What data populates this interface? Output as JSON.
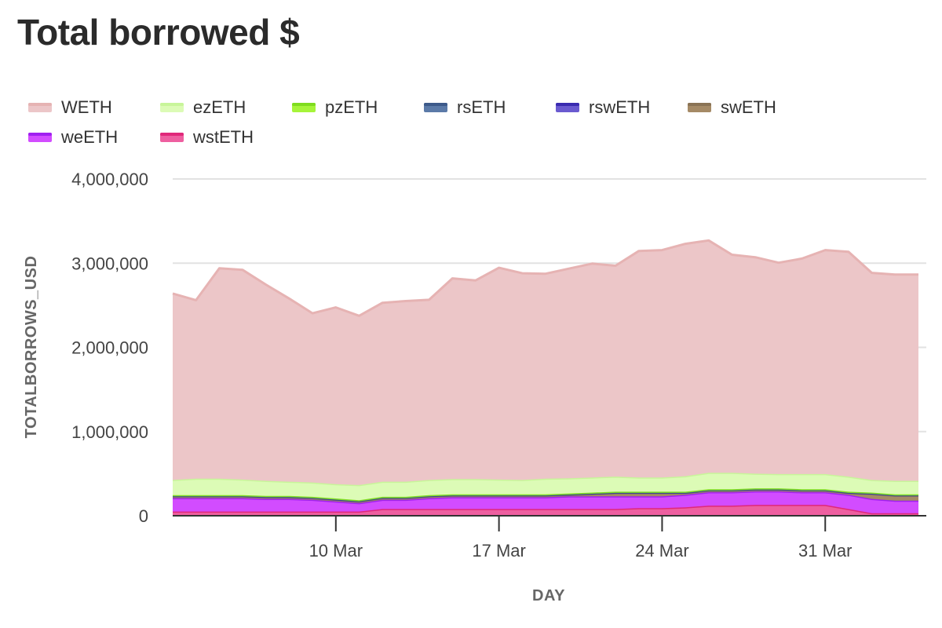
{
  "page": {
    "title": "Total borrowed $"
  },
  "chart_data": {
    "type": "area",
    "stacked": true,
    "title": "Total borrowed $",
    "xlabel": "DAY",
    "ylabel": "TOTALBORROWS_USD",
    "ylim": [
      0,
      4000000
    ],
    "yticks": [
      0,
      1000000,
      2000000,
      3000000,
      4000000
    ],
    "ytick_labels": [
      "0",
      "1,000,000",
      "2,000,000",
      "3,000,000",
      "4,000,000"
    ],
    "x_start": "2024-03-03",
    "xticks": [
      "2024-03-10",
      "2024-03-17",
      "2024-03-24",
      "2024-03-31"
    ],
    "xtick_labels": [
      "10 Mar",
      "17 Mar",
      "24 Mar",
      "31 Mar"
    ],
    "grid": true,
    "legend_position": "top",
    "x": [
      "2024-03-03",
      "2024-03-04",
      "2024-03-05",
      "2024-03-06",
      "2024-03-07",
      "2024-03-08",
      "2024-03-09",
      "2024-03-10",
      "2024-03-11",
      "2024-03-12",
      "2024-03-13",
      "2024-03-14",
      "2024-03-15",
      "2024-03-16",
      "2024-03-17",
      "2024-03-18",
      "2024-03-19",
      "2024-03-20",
      "2024-03-21",
      "2024-03-22",
      "2024-03-23",
      "2024-03-24",
      "2024-03-25",
      "2024-03-26",
      "2024-03-27",
      "2024-03-28",
      "2024-03-29",
      "2024-03-30",
      "2024-03-31",
      "2024-04-01",
      "2024-04-02",
      "2024-04-03",
      "2024-04-04"
    ],
    "series": [
      {
        "name": "wstETH",
        "color": "#e0287a",
        "fill": "#ee5fa0",
        "values": [
          50000,
          50000,
          50000,
          50000,
          50000,
          50000,
          50000,
          50000,
          50000,
          80000,
          80000,
          80000,
          80000,
          80000,
          80000,
          80000,
          80000,
          80000,
          80000,
          80000,
          90000,
          90000,
          100000,
          120000,
          120000,
          130000,
          130000,
          130000,
          130000,
          80000,
          30000,
          30000,
          30000
        ]
      },
      {
        "name": "weETH",
        "color": "#a020f0",
        "fill": "#d24cff",
        "values": [
          160000,
          160000,
          160000,
          160000,
          150000,
          150000,
          140000,
          120000,
          100000,
          110000,
          110000,
          130000,
          140000,
          140000,
          140000,
          140000,
          140000,
          150000,
          150000,
          150000,
          140000,
          140000,
          150000,
          160000,
          160000,
          160000,
          160000,
          150000,
          150000,
          170000,
          170000,
          150000,
          150000
        ]
      },
      {
        "name": "swETH",
        "color": "#8a7355",
        "fill": "#a58a66",
        "values": [
          20000,
          20000,
          20000,
          20000,
          20000,
          20000,
          20000,
          20000,
          20000,
          20000,
          20000,
          20000,
          20000,
          20000,
          20000,
          20000,
          20000,
          20000,
          30000,
          40000,
          40000,
          40000,
          20000,
          20000,
          20000,
          20000,
          20000,
          20000,
          20000,
          20000,
          60000,
          60000,
          60000
        ]
      },
      {
        "name": "rswETH",
        "color": "#3a2bb0",
        "fill": "#6a5ad0",
        "values": [
          5000,
          5000,
          5000,
          5000,
          5000,
          5000,
          5000,
          5000,
          5000,
          5000,
          5000,
          5000,
          5000,
          5000,
          5000,
          5000,
          5000,
          5000,
          5000,
          5000,
          5000,
          5000,
          5000,
          5000,
          5000,
          5000,
          5000,
          5000,
          5000,
          5000,
          5000,
          5000,
          5000
        ]
      },
      {
        "name": "rsETH",
        "color": "#3d5a8a",
        "fill": "#5b7aa8",
        "values": [
          5000,
          5000,
          5000,
          5000,
          5000,
          5000,
          5000,
          5000,
          5000,
          5000,
          5000,
          5000,
          5000,
          5000,
          5000,
          5000,
          5000,
          5000,
          5000,
          5000,
          5000,
          5000,
          5000,
          5000,
          5000,
          5000,
          5000,
          5000,
          5000,
          5000,
          5000,
          5000,
          5000
        ]
      },
      {
        "name": "pzETH",
        "color": "#7fdc1f",
        "fill": "#a6f43a",
        "values": [
          5000,
          5000,
          5000,
          5000,
          5000,
          5000,
          5000,
          5000,
          5000,
          5000,
          5000,
          5000,
          5000,
          5000,
          5000,
          5000,
          5000,
          5000,
          5000,
          5000,
          5000,
          5000,
          5000,
          5000,
          5000,
          5000,
          5000,
          5000,
          5000,
          5000,
          5000,
          5000,
          5000
        ]
      },
      {
        "name": "ezETH",
        "color": "#c8f59a",
        "fill": "#dcfbb6",
        "values": [
          180000,
          195000,
          195000,
          185000,
          180000,
          170000,
          170000,
          170000,
          180000,
          180000,
          180000,
          180000,
          180000,
          180000,
          175000,
          170000,
          185000,
          180000,
          180000,
          180000,
          170000,
          170000,
          185000,
          195000,
          195000,
          175000,
          170000,
          180000,
          180000,
          180000,
          150000,
          160000,
          160000
        ]
      },
      {
        "name": "WETH",
        "color": "#e6b3b3",
        "fill": "#ecc6c8",
        "values": [
          2215000,
          2120000,
          2500000,
          2490000,
          2330000,
          2175000,
          2010000,
          2100000,
          2010000,
          2125000,
          2145000,
          2140000,
          2385000,
          2360000,
          2515000,
          2455000,
          2435000,
          2490000,
          2540000,
          2505000,
          2690000,
          2700000,
          2760000,
          2760000,
          2590000,
          2570000,
          2510000,
          2560000,
          2660000,
          2670000,
          2460000,
          2450000,
          2450000
        ]
      }
    ]
  },
  "legend": {
    "items": [
      {
        "name": "WETH",
        "color": "#e6b3b3",
        "fill": "#ecc6c8"
      },
      {
        "name": "ezETH",
        "color": "#c8f59a",
        "fill": "#dcfbb6"
      },
      {
        "name": "pzETH",
        "color": "#7fdc1f",
        "fill": "#a6f43a"
      },
      {
        "name": "rsETH",
        "color": "#3d5a8a",
        "fill": "#5b7aa8"
      },
      {
        "name": "rswETH",
        "color": "#3a2bb0",
        "fill": "#6a5ad0"
      },
      {
        "name": "swETH",
        "color": "#8a7355",
        "fill": "#a58a66"
      },
      {
        "name": "weETH",
        "color": "#a020f0",
        "fill": "#d24cff"
      },
      {
        "name": "wstETH",
        "color": "#e0287a",
        "fill": "#ee5fa0"
      }
    ]
  }
}
